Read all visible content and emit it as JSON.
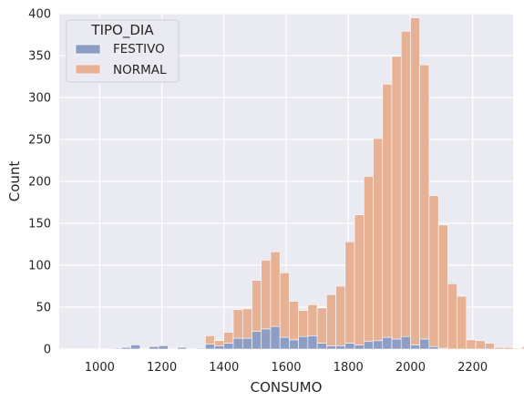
{
  "chart_data": {
    "type": "bar",
    "subtype": "stacked-histogram",
    "xlabel": "CONSUMO",
    "ylabel": "Count",
    "xlim": [
      870,
      2330
    ],
    "ylim": [
      0,
      400
    ],
    "xticks": [
      1000,
      1200,
      1400,
      1600,
      1800,
      2000,
      2200
    ],
    "yticks": [
      0,
      50,
      100,
      150,
      200,
      250,
      300,
      350,
      400
    ],
    "grid": true,
    "legend_position": "top-left",
    "legend_title": "TIPO_DIA",
    "bin_start": 1040,
    "bin_width": 30,
    "series": [
      {
        "name": "FESTIVO",
        "color": "#8d9dc4",
        "values": [
          1,
          2,
          5,
          0,
          3,
          4,
          0,
          2,
          0,
          1,
          6,
          4,
          7,
          13,
          13,
          21,
          24,
          27,
          14,
          11,
          15,
          16,
          7,
          4,
          4,
          7,
          5,
          9,
          10,
          14,
          12,
          15,
          5,
          12,
          3,
          1,
          0
        ]
      },
      {
        "name": "NORMAL",
        "color": "#e6b194",
        "values": [
          0,
          0,
          0,
          0,
          0,
          0,
          0,
          0,
          0,
          0,
          10,
          6,
          13,
          34,
          35,
          61,
          82,
          89,
          77,
          46,
          31,
          37,
          42,
          61,
          71,
          121,
          155,
          197,
          241,
          302,
          337,
          364,
          390,
          327,
          180,
          147,
          78,
          63,
          11,
          10,
          7,
          2,
          2,
          1,
          3,
          3,
          0,
          2,
          3,
          0
        ]
      }
    ]
  }
}
